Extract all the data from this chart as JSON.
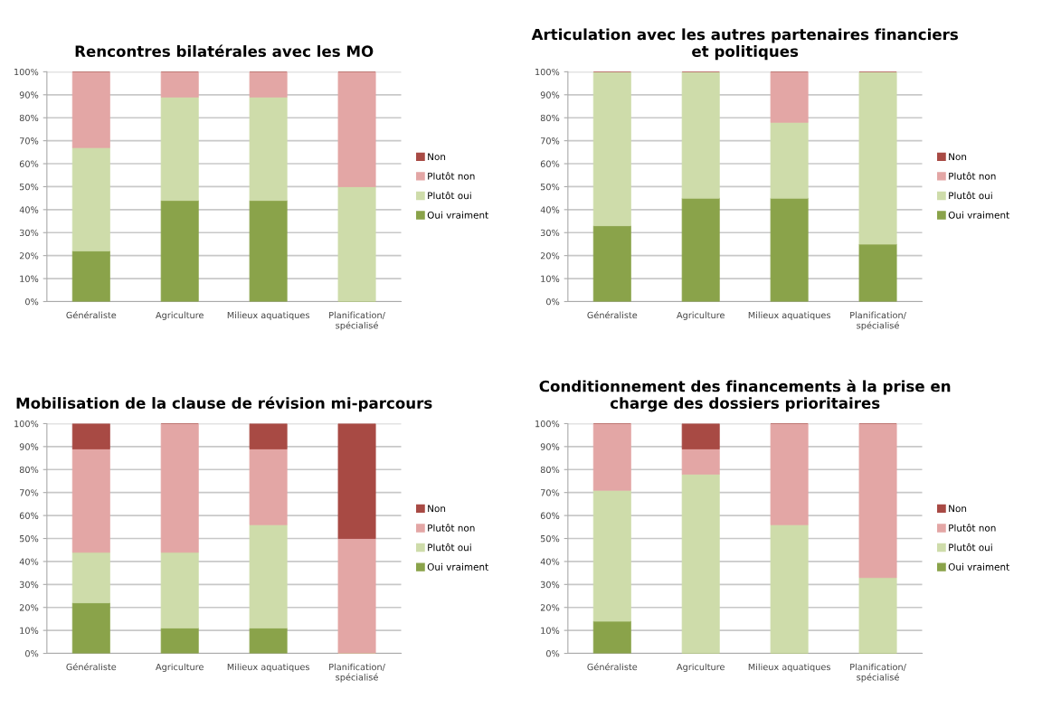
{
  "chart_data": [
    {
      "type": "bar",
      "stacked": true,
      "title": "Rencontres bilatérales avec les MO",
      "categories": [
        "Généraliste",
        "Agriculture",
        "Milieux aquatiques",
        "Planification/\nspécialisé"
      ],
      "ylim": [
        0,
        100
      ],
      "yticks": [
        {
          "value": 0,
          "label": "0%"
        },
        {
          "value": 10,
          "label": "10%"
        },
        {
          "value": 20,
          "label": "20%"
        },
        {
          "value": 30,
          "label": "30%"
        },
        {
          "value": 40,
          "label": "40%"
        },
        {
          "value": 50,
          "label": "50%"
        },
        {
          "value": 60,
          "label": "60%"
        },
        {
          "value": 70,
          "label": "70%"
        },
        {
          "value": 80,
          "label": "80%"
        },
        {
          "value": 90,
          "label": "90%"
        },
        {
          "value": 100,
          "label": "100%"
        }
      ],
      "grid": "y",
      "legend": "right",
      "series": [
        {
          "name": "Oui vraiment",
          "color": "#8aa34a",
          "values": [
            22,
            44,
            44,
            0
          ]
        },
        {
          "name": "Plutôt oui",
          "color": "#cedcaa",
          "values": [
            45,
            45,
            45,
            50
          ]
        },
        {
          "name": "Plutôt non",
          "color": "#e3a6a5",
          "values": [
            33,
            11,
            11,
            50
          ]
        },
        {
          "name": "Non",
          "color": "#a84a44",
          "values": [
            0,
            0,
            0,
            0
          ]
        }
      ]
    },
    {
      "type": "bar",
      "stacked": true,
      "title": "Articulation avec les autres partenaires financiers\net politiques",
      "categories": [
        "Généraliste",
        "Agriculture",
        "Milieux aquatiques",
        "Planification/\nspécialisé"
      ],
      "ylim": [
        0,
        100
      ],
      "yticks": [
        {
          "value": 0,
          "label": "0%"
        },
        {
          "value": 10,
          "label": "10%"
        },
        {
          "value": 20,
          "label": "20%"
        },
        {
          "value": 30,
          "label": "30%"
        },
        {
          "value": 40,
          "label": "40%"
        },
        {
          "value": 50,
          "label": "50%"
        },
        {
          "value": 60,
          "label": "60%"
        },
        {
          "value": 70,
          "label": "70%"
        },
        {
          "value": 80,
          "label": "80%"
        },
        {
          "value": 90,
          "label": "90%"
        },
        {
          "value": 100,
          "label": "100%"
        }
      ],
      "grid": "y",
      "legend": "right",
      "series": [
        {
          "name": "Oui vraiment",
          "color": "#8aa34a",
          "values": [
            33,
            45,
            45,
            25
          ]
        },
        {
          "name": "Plutôt oui",
          "color": "#cedcaa",
          "values": [
            67,
            55,
            33,
            75
          ]
        },
        {
          "name": "Plutôt non",
          "color": "#e3a6a5",
          "values": [
            0,
            0,
            22,
            0
          ]
        },
        {
          "name": "Non",
          "color": "#a84a44",
          "values": [
            0,
            0,
            0,
            0
          ]
        }
      ]
    },
    {
      "type": "bar",
      "stacked": true,
      "title": "Mobilisation de la clause de révision mi-parcours",
      "categories": [
        "Généraliste",
        "Agriculture",
        "Milieux aquatiques",
        "Planification/\nspécialisé"
      ],
      "ylim": [
        0,
        100
      ],
      "yticks": [
        {
          "value": 0,
          "label": "0%"
        },
        {
          "value": 10,
          "label": "10%"
        },
        {
          "value": 20,
          "label": "20%"
        },
        {
          "value": 30,
          "label": "30%"
        },
        {
          "value": 40,
          "label": "40%"
        },
        {
          "value": 50,
          "label": "50%"
        },
        {
          "value": 60,
          "label": "60%"
        },
        {
          "value": 70,
          "label": "70%"
        },
        {
          "value": 80,
          "label": "80%"
        },
        {
          "value": 90,
          "label": "90%"
        },
        {
          "value": 100,
          "label": "100%"
        }
      ],
      "grid": "y",
      "legend": "right",
      "series": [
        {
          "name": "Oui vraiment",
          "color": "#8aa34a",
          "values": [
            22,
            11,
            11,
            0
          ]
        },
        {
          "name": "Plutôt oui",
          "color": "#cedcaa",
          "values": [
            22,
            33,
            45,
            0
          ]
        },
        {
          "name": "Plutôt non",
          "color": "#e3a6a5",
          "values": [
            45,
            56,
            33,
            50
          ]
        },
        {
          "name": "Non",
          "color": "#a84a44",
          "values": [
            11,
            0,
            11,
            50
          ]
        }
      ]
    },
    {
      "type": "bar",
      "stacked": true,
      "title": "Conditionnement des financements à la prise en\ncharge des dossiers prioritaires",
      "categories": [
        "Généraliste",
        "Agriculture",
        "Milieux aquatiques",
        "Planification/\nspécialisé"
      ],
      "ylim": [
        0,
        100
      ],
      "yticks": [
        {
          "value": 0,
          "label": "0%"
        },
        {
          "value": 10,
          "label": "10%"
        },
        {
          "value": 20,
          "label": "20%"
        },
        {
          "value": 30,
          "label": "30%"
        },
        {
          "value": 40,
          "label": "40%"
        },
        {
          "value": 50,
          "label": "50%"
        },
        {
          "value": 60,
          "label": "60%"
        },
        {
          "value": 70,
          "label": "70%"
        },
        {
          "value": 80,
          "label": "80%"
        },
        {
          "value": 90,
          "label": "90%"
        },
        {
          "value": 100,
          "label": "100%"
        }
      ],
      "grid": "y",
      "legend": "right",
      "series": [
        {
          "name": "Oui vraiment",
          "color": "#8aa34a",
          "values": [
            14,
            0,
            0,
            0
          ]
        },
        {
          "name": "Plutôt oui",
          "color": "#cedcaa",
          "values": [
            57,
            78,
            56,
            33
          ]
        },
        {
          "name": "Plutôt non",
          "color": "#e3a6a5",
          "values": [
            29,
            11,
            44,
            67
          ]
        },
        {
          "name": "Non",
          "color": "#a84a44",
          "values": [
            0,
            11,
            0,
            0
          ]
        }
      ]
    }
  ]
}
